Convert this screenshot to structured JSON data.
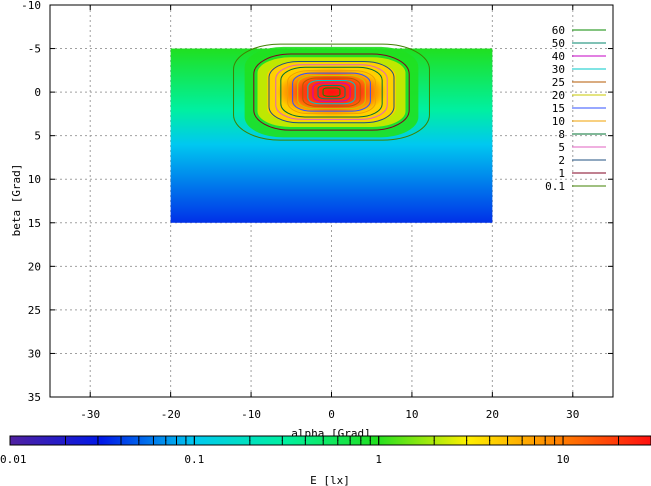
{
  "chart_data": {
    "type": "heatmap",
    "xlabel": "alpha [Grad]",
    "ylabel": "beta [Grad]",
    "xlim": [
      -35,
      35
    ],
    "ylim": [
      35,
      -10
    ],
    "xticks": [
      -30,
      -20,
      -10,
      0,
      10,
      20,
      30
    ],
    "yticks": [
      -10,
      -5,
      0,
      5,
      10,
      15,
      20,
      25,
      30,
      35
    ],
    "grid": true,
    "data_extent": {
      "alpha": [
        -20,
        20
      ],
      "beta": [
        -5,
        15
      ]
    },
    "peak": {
      "alpha": 0,
      "beta": 0
    },
    "contour_levels": [
      {
        "label": "60",
        "color": "#0a8a00"
      },
      {
        "label": "50",
        "color": "#00846b"
      },
      {
        "label": "40",
        "color": "#c400c4"
      },
      {
        "label": "30",
        "color": "#00c8c8"
      },
      {
        "label": "25",
        "color": "#b45a00"
      },
      {
        "label": "20",
        "color": "#c8c800"
      },
      {
        "label": "15",
        "color": "#3050ff"
      },
      {
        "label": "10",
        "color": "#f0a000"
      },
      {
        "label": "8",
        "color": "#007030"
      },
      {
        "label": "5",
        "color": "#e060c0"
      },
      {
        "label": "2",
        "color": "#205080"
      },
      {
        "label": "1",
        "color": "#800020"
      },
      {
        "label": "0.1",
        "color": "#408000"
      }
    ],
    "colorbar": {
      "label": "E [lx]",
      "scale": "log",
      "range": [
        0.01,
        30
      ],
      "ticks": [
        "0.01",
        "0.1",
        "1",
        "10"
      ],
      "colors": [
        "#5020a0",
        "#0018e8",
        "#00c8f0",
        "#00f0a0",
        "#20e020",
        "#fff000",
        "#ff8000",
        "#ff1010"
      ]
    }
  }
}
